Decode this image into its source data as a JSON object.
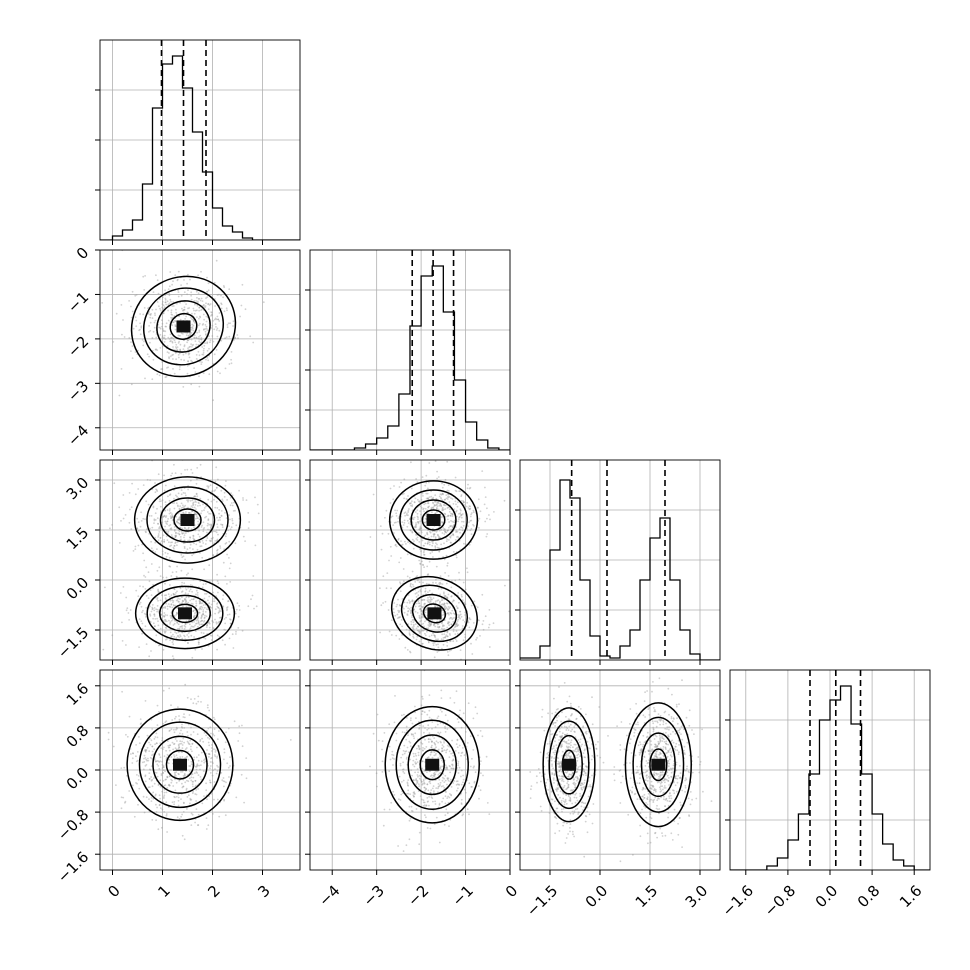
{
  "chart_data": {
    "type": "corner",
    "parameters": [
      {
        "range": [
          -0.25,
          3.75
        ],
        "ticks": [
          0,
          1,
          2,
          3
        ],
        "tick_labels": [
          "0",
          "1",
          "2",
          "3"
        ],
        "quantiles": [
          0.98,
          1.42,
          1.87
        ],
        "hist_bins": [
          -0.25,
          0.0,
          0.2,
          0.4,
          0.6,
          0.8,
          1.0,
          1.2,
          1.4,
          1.6,
          1.8,
          2.0,
          2.2,
          2.4,
          2.6,
          2.8,
          3.0,
          3.2,
          3.75
        ],
        "hist_counts": [
          0,
          2,
          5,
          10,
          28,
          66,
          88,
          92,
          76,
          54,
          34,
          16,
          7,
          4,
          1,
          0,
          0,
          0
        ],
        "hist_yticks": [
          0.25,
          0.5,
          0.75
        ],
        "hist_ymax": 100
      },
      {
        "range": [
          -4.5,
          0.0
        ],
        "ticks": [
          -4,
          -3,
          -2,
          -1,
          0
        ],
        "tick_labels": [
          "−4",
          "−3",
          "−2",
          "−1",
          "0"
        ],
        "quantiles": [
          -2.2,
          -1.73,
          -1.27
        ],
        "hist_bins": [
          -4.5,
          -3.5,
          -3.25,
          -3.0,
          -2.75,
          -2.5,
          -2.25,
          -2.0,
          -1.75,
          -1.5,
          -1.25,
          -1.0,
          -0.75,
          -0.5,
          -0.25,
          0.0
        ],
        "hist_counts": [
          0,
          1,
          3,
          6,
          12,
          28,
          62,
          87,
          92,
          69,
          35,
          14,
          5,
          1,
          0
        ],
        "hist_yticks": [
          0.2,
          0.4,
          0.6,
          0.8
        ],
        "hist_ymax": 100
      },
      {
        "range": [
          -2.4,
          3.6
        ],
        "ticks": [
          -1.5,
          0.0,
          1.5,
          3.0
        ],
        "tick_labels": [
          "−1.5",
          "0.0",
          "1.5",
          "3.0"
        ],
        "quantiles": [
          -0.85,
          0.21,
          1.95
        ],
        "hist_bins": [
          -2.4,
          -1.8,
          -1.5,
          -1.2,
          -0.9,
          -0.6,
          -0.3,
          0.0,
          0.3,
          0.6,
          0.9,
          1.2,
          1.5,
          1.8,
          2.1,
          2.4,
          2.7,
          3.0,
          3.6
        ],
        "hist_counts": [
          1,
          7,
          55,
          90,
          81,
          40,
          12,
          2,
          1,
          7,
          15,
          40,
          61,
          71,
          40,
          15,
          3,
          0
        ],
        "hist_yticks": [
          0.25,
          0.5,
          0.75
        ],
        "hist_ymax": 100
      },
      {
        "range": [
          -1.9,
          1.9
        ],
        "ticks": [
          -1.6,
          -0.8,
          0.0,
          0.8,
          1.6
        ],
        "tick_labels": [
          "−1.6",
          "−0.8",
          "0.0",
          "0.8",
          "1.6"
        ],
        "quantiles": [
          -0.38,
          0.11,
          0.58
        ],
        "hist_bins": [
          -1.9,
          -1.2,
          -1.0,
          -0.8,
          -0.6,
          -0.4,
          -0.2,
          0.0,
          0.2,
          0.4,
          0.6,
          0.8,
          1.0,
          1.2,
          1.4,
          1.6,
          1.9
        ],
        "hist_counts": [
          0,
          2,
          6,
          15,
          28,
          48,
          75,
          85,
          92,
          73,
          48,
          28,
          13,
          5,
          2,
          0
        ],
        "hist_yticks": [
          0.25,
          0.5,
          0.75
        ],
        "hist_ymax": 100
      }
    ],
    "blobs": {
      "1-0": [
        {
          "cx": 1.42,
          "cy": -1.72,
          "sx": 0.45,
          "sy": 0.47,
          "rot": -30
        }
      ],
      "2-0": [
        {
          "cx": 1.5,
          "cy": 1.8,
          "sx": 0.45,
          "sy": 0.55,
          "rot": 0
        },
        {
          "cx": 1.45,
          "cy": -1.0,
          "sx": 0.42,
          "sy": 0.45,
          "rot": 0
        }
      ],
      "2-1": [
        {
          "cx": -1.72,
          "cy": 1.8,
          "sx": 0.42,
          "sy": 0.5,
          "rot": 0
        },
        {
          "cx": -1.7,
          "cy": -1.0,
          "sx": 0.42,
          "sy": 0.45,
          "rot": 22
        }
      ],
      "3-0": [
        {
          "cx": 1.35,
          "cy": 0.1,
          "sx": 0.45,
          "sy": 0.45,
          "rot": 0
        }
      ],
      "3-1": [
        {
          "cx": -1.75,
          "cy": 0.1,
          "sx": 0.45,
          "sy": 0.47,
          "rot": 0
        }
      ],
      "3-2": [
        {
          "cx": -0.93,
          "cy": 0.1,
          "sx": 0.33,
          "sy": 0.46,
          "rot": 0
        },
        {
          "cx": 1.75,
          "cy": 0.1,
          "sx": 0.42,
          "sy": 0.5,
          "rot": 0
        }
      ]
    },
    "contour_levels": [
      0.6,
      1.2,
      1.8,
      2.35
    ],
    "grid": true,
    "title": "",
    "legend": ""
  }
}
